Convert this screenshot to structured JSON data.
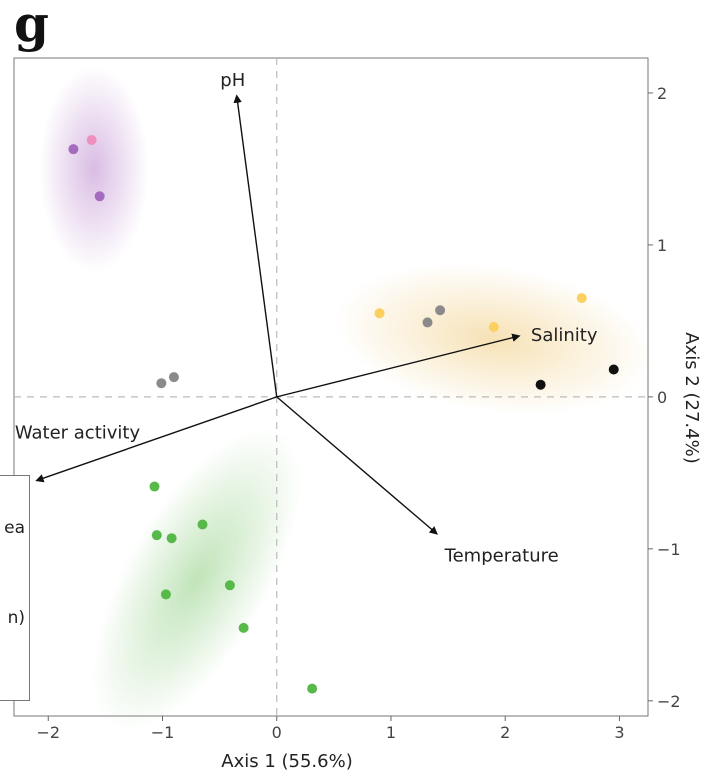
{
  "panel_letter": "g",
  "chart_data": {
    "type": "scatter",
    "subtype": "PCA biplot",
    "xlabel": "Axis 1 (55.6%)",
    "ylabel": "Axis 2 (27.4%)",
    "xlim": [
      -2.3,
      3.25
    ],
    "ylim": [
      -2.1,
      2.23
    ],
    "x_ticks": [
      -2,
      -1,
      0,
      1,
      2,
      3
    ],
    "y_ticks": [
      -2,
      -1,
      0,
      1,
      2
    ],
    "x_tick_labels": [
      "−2",
      "−1",
      "0",
      "1",
      "2",
      "3"
    ],
    "y_tick_labels": [
      "−2",
      "−1",
      "0",
      "1",
      "2"
    ],
    "y_axis_position": "right",
    "reference_lines": "dashed at x=0 and y=0",
    "grid": false,
    "vectors": [
      {
        "label": "pH",
        "x": -0.35,
        "y": 1.98
      },
      {
        "label": "Salinity",
        "x": 2.12,
        "y": 0.4
      },
      {
        "label": "Water activity",
        "x": -2.1,
        "y": -0.55
      },
      {
        "label": "Temperature",
        "x": 1.4,
        "y": -0.9
      }
    ],
    "ellipses": [
      {
        "color": "#b77fc9",
        "cx": -1.6,
        "cy": 1.5,
        "rx": 0.48,
        "ry": 0.68,
        "angle": 0
      },
      {
        "color": "#f0c870",
        "cx": 1.9,
        "cy": 0.38,
        "rx": 1.4,
        "ry": 0.48,
        "angle": 8
      },
      {
        "color": "#8fcf86",
        "cx": -0.7,
        "cy": -1.2,
        "rx": 0.62,
        "ry": 1.12,
        "angle": 30
      }
    ],
    "points": [
      {
        "x": -1.78,
        "y": 1.63,
        "color": "#a56bbf"
      },
      {
        "x": -1.62,
        "y": 1.69,
        "color": "#ef8fbf"
      },
      {
        "x": -1.55,
        "y": 1.32,
        "color": "#a56bbf"
      },
      {
        "x": -1.01,
        "y": 0.09,
        "color": "#8a8a8a"
      },
      {
        "x": -0.9,
        "y": 0.13,
        "color": "#8a8a8a"
      },
      {
        "x": 0.9,
        "y": 0.55,
        "color": "#fcd060"
      },
      {
        "x": 1.32,
        "y": 0.49,
        "color": "#8a8a8a"
      },
      {
        "x": 1.43,
        "y": 0.57,
        "color": "#8a8a8a"
      },
      {
        "x": 1.9,
        "y": 0.46,
        "color": "#fcd060"
      },
      {
        "x": 2.67,
        "y": 0.65,
        "color": "#fcd060"
      },
      {
        "x": 2.31,
        "y": 0.08,
        "color": "#111111"
      },
      {
        "x": 2.95,
        "y": 0.18,
        "color": "#111111"
      },
      {
        "x": -1.07,
        "y": -0.59,
        "color": "#57b94a"
      },
      {
        "x": -1.05,
        "y": -0.91,
        "color": "#57b94a"
      },
      {
        "x": -0.92,
        "y": -0.93,
        "color": "#57b94a"
      },
      {
        "x": -0.65,
        "y": -0.84,
        "color": "#57b94a"
      },
      {
        "x": -0.41,
        "y": -1.24,
        "color": "#57b94a"
      },
      {
        "x": -0.97,
        "y": -1.3,
        "color": "#57b94a"
      },
      {
        "x": -0.29,
        "y": -1.52,
        "color": "#57b94a"
      },
      {
        "x": 0.31,
        "y": -1.92,
        "color": "#57b94a"
      }
    ],
    "legend_partial_text": [
      "ea",
      "n)"
    ]
  }
}
